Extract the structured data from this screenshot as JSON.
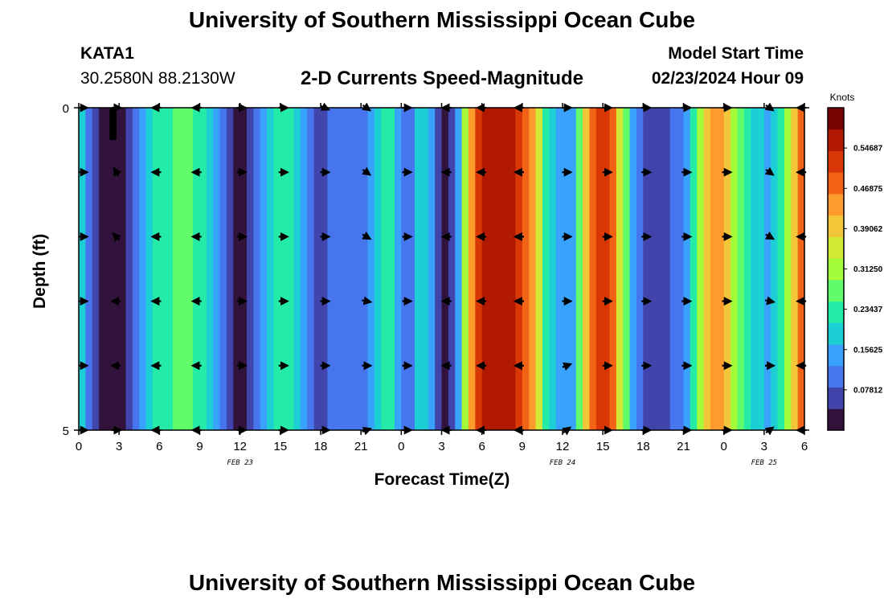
{
  "header": {
    "title": "University of Southern Mississippi Ocean Cube",
    "station_id": "KATA1",
    "station_coords": "30.2580N  88.2130W",
    "subtitle": "2-D Currents Speed-Magnitude",
    "model_start_label": "Model Start Time",
    "model_start_value": "02/23/2024 Hour 09"
  },
  "footer": {
    "title": "University of Southern Mississippi Ocean Cube"
  },
  "colors": {
    "palette": [
      "#30123b",
      "#4145ab",
      "#4675ed",
      "#39a2fc",
      "#1bcfd4",
      "#24eca6",
      "#61fc6c",
      "#a4fc3b",
      "#d1e834",
      "#f3c63a",
      "#fe9b2d",
      "#f36315",
      "#d93806",
      "#b11901",
      "#7a0403"
    ],
    "arrow": "#000000",
    "mask": "#000000"
  },
  "chart_data": {
    "type": "heatmap",
    "title": "2-D Currents Speed-Magnitude",
    "xlabel": "Forecast Time(Z)",
    "ylabel": "Depth (ft)",
    "colorbar_label": "Knots",
    "value_range": [
      0,
      0.625
    ],
    "colorbar_ticks": [
      "0.07812",
      "0.15625",
      "0.23437",
      "0.31250",
      "0.39062",
      "0.46875",
      "0.54687"
    ],
    "colorbar_tick_values": [
      0.078125,
      0.15625,
      0.234375,
      0.3125,
      0.390625,
      0.46875,
      0.546875
    ],
    "x_hours": [
      0,
      48
    ],
    "x_ticks": [
      {
        "h": 0,
        "label": "0"
      },
      {
        "h": 3,
        "label": "3"
      },
      {
        "h": 6,
        "label": "6"
      },
      {
        "h": 9,
        "label": "9"
      },
      {
        "h": 12,
        "label": "12"
      },
      {
        "h": 15,
        "label": "15"
      },
      {
        "h": 18,
        "label": "18"
      },
      {
        "h": 21,
        "label": "21"
      },
      {
        "h": 24,
        "label": "0"
      },
      {
        "h": 27,
        "label": "3"
      },
      {
        "h": 30,
        "label": "6"
      },
      {
        "h": 33,
        "label": "9"
      },
      {
        "h": 36,
        "label": "12"
      },
      {
        "h": 39,
        "label": "15"
      },
      {
        "h": 42,
        "label": "18"
      },
      {
        "h": 45,
        "label": "21"
      },
      {
        "h": 48,
        "label": "0"
      },
      {
        "h": 51,
        "label": "3"
      },
      {
        "h": 54,
        "label": "6"
      }
    ],
    "x_range": [
      0,
      54
    ],
    "date_labels": [
      {
        "h": 12,
        "label": "FEB 23"
      },
      {
        "h": 36,
        "label": "FEB 24"
      },
      {
        "h": 51,
        "label": "FEB 25"
      }
    ],
    "y_range": [
      0,
      5
    ],
    "y_ticks": [
      {
        "v": 0,
        "label": "0"
      },
      {
        "v": 5,
        "label": "5"
      }
    ],
    "columns": [
      {
        "h": 0.0,
        "v": 0.2
      },
      {
        "h": 0.5,
        "v": 0.12
      },
      {
        "h": 1.0,
        "v": 0.07
      },
      {
        "h": 1.5,
        "v": 0.03
      },
      {
        "h": 2.0,
        "v": 0.01
      },
      {
        "h": 2.5,
        "v": 0.0
      },
      {
        "h": 3.0,
        "v": 0.02
      },
      {
        "h": 3.5,
        "v": 0.05
      },
      {
        "h": 4.0,
        "v": 0.1
      },
      {
        "h": 4.5,
        "v": 0.14
      },
      {
        "h": 5.0,
        "v": 0.18
      },
      {
        "h": 5.5,
        "v": 0.21
      },
      {
        "h": 6.0,
        "v": 0.23
      },
      {
        "h": 6.5,
        "v": 0.24
      },
      {
        "h": 7.0,
        "v": 0.25
      },
      {
        "h": 7.5,
        "v": 0.25
      },
      {
        "h": 8.0,
        "v": 0.25
      },
      {
        "h": 8.5,
        "v": 0.24
      },
      {
        "h": 9.0,
        "v": 0.23
      },
      {
        "h": 9.5,
        "v": 0.2
      },
      {
        "h": 10.0,
        "v": 0.15
      },
      {
        "h": 10.5,
        "v": 0.1
      },
      {
        "h": 11.0,
        "v": 0.06
      },
      {
        "h": 11.5,
        "v": 0.04
      },
      {
        "h": 12.0,
        "v": 0.03
      },
      {
        "h": 12.5,
        "v": 0.05
      },
      {
        "h": 13.0,
        "v": 0.09
      },
      {
        "h": 13.5,
        "v": 0.14
      },
      {
        "h": 14.0,
        "v": 0.19
      },
      {
        "h": 14.5,
        "v": 0.23
      },
      {
        "h": 15.0,
        "v": 0.24
      },
      {
        "h": 15.5,
        "v": 0.22
      },
      {
        "h": 16.0,
        "v": 0.18
      },
      {
        "h": 16.5,
        "v": 0.13
      },
      {
        "h": 17.0,
        "v": 0.09
      },
      {
        "h": 17.5,
        "v": 0.08
      },
      {
        "h": 18.0,
        "v": 0.08
      },
      {
        "h": 18.5,
        "v": 0.09
      },
      {
        "h": 19.0,
        "v": 0.09
      },
      {
        "h": 19.5,
        "v": 0.09
      },
      {
        "h": 20.0,
        "v": 0.1
      },
      {
        "h": 20.5,
        "v": 0.1
      },
      {
        "h": 21.0,
        "v": 0.1
      },
      {
        "h": 21.5,
        "v": 0.13
      },
      {
        "h": 22.0,
        "v": 0.19
      },
      {
        "h": 22.5,
        "v": 0.23
      },
      {
        "h": 23.0,
        "v": 0.21
      },
      {
        "h": 23.5,
        "v": 0.16
      },
      {
        "h": 24.0,
        "v": 0.11
      },
      {
        "h": 24.5,
        "v": 0.12
      },
      {
        "h": 25.0,
        "v": 0.17
      },
      {
        "h": 25.5,
        "v": 0.19
      },
      {
        "h": 26.0,
        "v": 0.14
      },
      {
        "h": 26.5,
        "v": 0.07
      },
      {
        "h": 27.0,
        "v": 0.03
      },
      {
        "h": 27.5,
        "v": 0.06
      },
      {
        "h": 28.0,
        "v": 0.16
      },
      {
        "h": 28.5,
        "v": 0.3
      },
      {
        "h": 29.0,
        "v": 0.45
      },
      {
        "h": 29.5,
        "v": 0.52
      },
      {
        "h": 30.0,
        "v": 0.56
      },
      {
        "h": 30.5,
        "v": 0.58
      },
      {
        "h": 31.0,
        "v": 0.58
      },
      {
        "h": 31.5,
        "v": 0.58
      },
      {
        "h": 32.0,
        "v": 0.56
      },
      {
        "h": 32.5,
        "v": 0.53
      },
      {
        "h": 33.0,
        "v": 0.48
      },
      {
        "h": 33.5,
        "v": 0.42
      },
      {
        "h": 34.0,
        "v": 0.34
      },
      {
        "h": 34.5,
        "v": 0.24
      },
      {
        "h": 35.0,
        "v": 0.18
      },
      {
        "h": 35.5,
        "v": 0.15
      },
      {
        "h": 36.0,
        "v": 0.13
      },
      {
        "h": 36.5,
        "v": 0.16
      },
      {
        "h": 37.0,
        "v": 0.26
      },
      {
        "h": 37.5,
        "v": 0.38
      },
      {
        "h": 38.0,
        "v": 0.47
      },
      {
        "h": 38.5,
        "v": 0.5
      },
      {
        "h": 39.0,
        "v": 0.5
      },
      {
        "h": 39.5,
        "v": 0.46
      },
      {
        "h": 40.0,
        "v": 0.37
      },
      {
        "h": 40.5,
        "v": 0.25
      },
      {
        "h": 41.0,
        "v": 0.15
      },
      {
        "h": 41.5,
        "v": 0.1
      },
      {
        "h": 42.0,
        "v": 0.08
      },
      {
        "h": 42.5,
        "v": 0.08
      },
      {
        "h": 43.0,
        "v": 0.08
      },
      {
        "h": 43.5,
        "v": 0.08
      },
      {
        "h": 44.0,
        "v": 0.09
      },
      {
        "h": 44.5,
        "v": 0.1
      },
      {
        "h": 45.0,
        "v": 0.13
      },
      {
        "h": 45.5,
        "v": 0.22
      },
      {
        "h": 46.0,
        "v": 0.33
      },
      {
        "h": 46.5,
        "v": 0.4
      },
      {
        "h": 47.0,
        "v": 0.43
      },
      {
        "h": 47.5,
        "v": 0.42
      },
      {
        "h": 48.0,
        "v": 0.38
      },
      {
        "h": 48.5,
        "v": 0.32
      },
      {
        "h": 49.0,
        "v": 0.26
      },
      {
        "h": 49.5,
        "v": 0.22
      },
      {
        "h": 50.0,
        "v": 0.2
      },
      {
        "h": 50.5,
        "v": 0.18
      },
      {
        "h": 51.0,
        "v": 0.15
      },
      {
        "h": 51.5,
        "v": 0.17
      },
      {
        "h": 52.0,
        "v": 0.24
      },
      {
        "h": 52.5,
        "v": 0.32
      },
      {
        "h": 53.0,
        "v": 0.4
      },
      {
        "h": 53.5,
        "v": 0.47
      }
    ],
    "mask": {
      "h_start": 2.3,
      "h_end": 2.8,
      "depth_start": 0,
      "depth_end": 0.5
    },
    "arrow_depths": [
      0,
      1,
      2,
      3,
      4,
      5
    ],
    "arrow_columns": [
      {
        "h": 0.3,
        "deg": [
          0,
          0,
          0,
          0,
          0,
          0
        ]
      },
      {
        "h": 2.8,
        "deg": [
          0,
          -120,
          -135,
          180,
          180,
          0
        ]
      },
      {
        "h": 5.8,
        "deg": [
          180,
          180,
          180,
          180,
          180,
          180
        ]
      },
      {
        "h": 8.8,
        "deg": [
          180,
          180,
          180,
          180,
          180,
          180
        ]
      },
      {
        "h": 12.1,
        "deg": [
          0,
          0,
          0,
          0,
          0,
          0
        ]
      },
      {
        "h": 15.2,
        "deg": [
          0,
          0,
          0,
          0,
          0,
          0
        ]
      },
      {
        "h": 18.3,
        "deg": [
          25,
          0,
          0,
          0,
          0,
          0
        ]
      },
      {
        "h": 21.4,
        "deg": [
          35,
          35,
          30,
          10,
          0,
          -20
        ]
      },
      {
        "h": 24.4,
        "deg": [
          0,
          0,
          0,
          0,
          0,
          0
        ]
      },
      {
        "h": 27.4,
        "deg": [
          180,
          180,
          180,
          180,
          180,
          180
        ]
      },
      {
        "h": 30.0,
        "deg": [
          180,
          180,
          180,
          180,
          180,
          180
        ]
      },
      {
        "h": 32.8,
        "deg": [
          180,
          180,
          180,
          180,
          180,
          180
        ]
      },
      {
        "h": 36.3,
        "deg": [
          0,
          0,
          0,
          0,
          -20,
          -35
        ]
      },
      {
        "h": 39.3,
        "deg": [
          0,
          0,
          0,
          0,
          0,
          0
        ]
      },
      {
        "h": 42.2,
        "deg": [
          0,
          0,
          0,
          0,
          0,
          0
        ]
      },
      {
        "h": 45.2,
        "deg": [
          0,
          0,
          0,
          0,
          0,
          0
        ]
      },
      {
        "h": 48.2,
        "deg": [
          0,
          0,
          0,
          0,
          0,
          0
        ]
      },
      {
        "h": 51.4,
        "deg": [
          35,
          35,
          30,
          10,
          0,
          -35
        ]
      },
      {
        "h": 53.8,
        "deg": [
          180,
          180,
          180,
          180,
          180,
          180
        ]
      }
    ]
  }
}
